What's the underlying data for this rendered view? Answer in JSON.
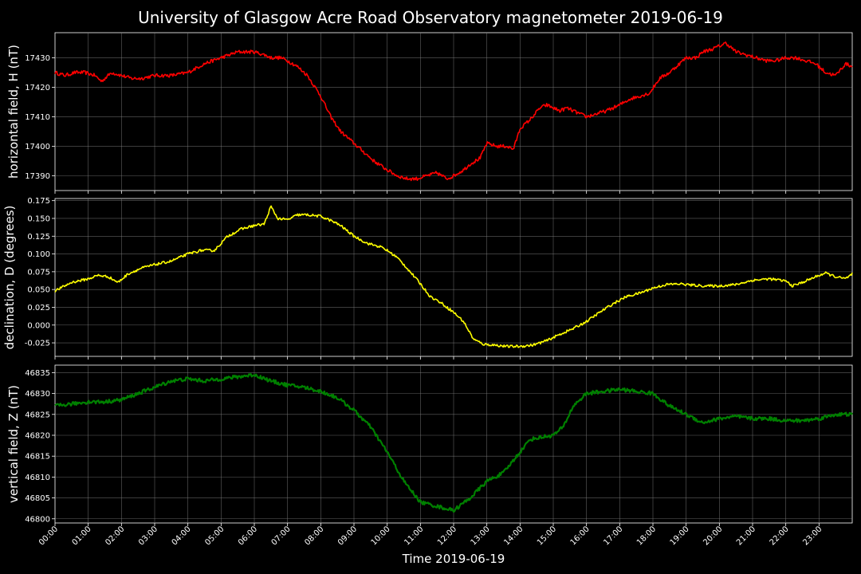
{
  "title": "University of Glasgow Acre Road Observatory magnetometer 2019-06-19",
  "xlabel": "Time 2019-06-19",
  "x_ticks": [
    "00:00",
    "01:00",
    "02:00",
    "03:00",
    "04:00",
    "05:00",
    "06:00",
    "07:00",
    "08:00",
    "09:00",
    "10:00",
    "11:00",
    "12:00",
    "13:00",
    "14:00",
    "15:00",
    "16:00",
    "17:00",
    "18:00",
    "19:00",
    "20:00",
    "21:00",
    "22:00",
    "23:00"
  ],
  "chart_data": [
    {
      "type": "line",
      "ylabel": "horizontal field, H (nT)",
      "color": "#ff0000",
      "xlim": [
        0,
        24
      ],
      "ylim": [
        17385,
        17438.5
      ],
      "yticks": [
        17390,
        17400,
        17410,
        17420,
        17430
      ],
      "series": [
        {
          "x": [
            0,
            0.3,
            0.6,
            0.9,
            1.2,
            1.4,
            1.7,
            2,
            2.3,
            2.6,
            3,
            3.5,
            4,
            4.5,
            5,
            5.5,
            6,
            6.3,
            6.5,
            6.8,
            7,
            7.3,
            7.6,
            8,
            8.3,
            8.6,
            9,
            9.3,
            9.6,
            10,
            10.3,
            10.6,
            10.9,
            11.2,
            11.5,
            11.8,
            12,
            12.3,
            12.5,
            12.8,
            13,
            13.3,
            13.6,
            13.8,
            14,
            14.3,
            14.6,
            14.8,
            15,
            15.2,
            15.4,
            15.6,
            15.8,
            16,
            16.3,
            16.6,
            17,
            17.3,
            17.6,
            17.9,
            18.2,
            18.5,
            18.8,
            19,
            19.3,
            19.5,
            19.8,
            20,
            20.2,
            20.5,
            20.8,
            21.1,
            21.4,
            21.7,
            22,
            22.3,
            22.6,
            22.9,
            23.2,
            23.5,
            23.8,
            24
          ],
          "y": [
            17425,
            17424,
            17425,
            17425,
            17424,
            17422,
            17425,
            17424,
            17423,
            17423,
            17424,
            17424,
            17425,
            17428,
            17430,
            17432,
            17432,
            17431,
            17430,
            17430,
            17429,
            17427,
            17424,
            17417,
            17410,
            17405,
            17401,
            17398,
            17395,
            17392,
            17390,
            17389,
            17389,
            17390,
            17391,
            17389,
            17390,
            17392,
            17394,
            17396,
            17401,
            17400,
            17400,
            17399,
            17406,
            17409,
            17413,
            17414,
            17413,
            17412,
            17413,
            17412,
            17411,
            17410,
            17411,
            17412,
            17414,
            17416,
            17417,
            17418,
            17423,
            17425,
            17428,
            17430,
            17430,
            17432,
            17433,
            17434,
            17435,
            17432,
            17431,
            17430,
            17429,
            17429,
            17430,
            17430,
            17429,
            17428,
            17425,
            17424,
            17428,
            17427
          ]
        }
      ]
    },
    {
      "type": "line",
      "ylabel": "declination, D (degrees)",
      "color": "#ffff00",
      "xlim": [
        0,
        24
      ],
      "ylim": [
        -0.044,
        0.178
      ],
      "yticks": [
        -0.025,
        0.0,
        0.025,
        0.05,
        0.075,
        0.1,
        0.125,
        0.15,
        0.175
      ],
      "series": [
        {
          "x": [
            0,
            0.5,
            1,
            1.3,
            1.6,
            1.9,
            2.2,
            2.6,
            3,
            3.5,
            4,
            4.4,
            4.8,
            5.2,
            5.6,
            6,
            6.3,
            6.5,
            6.7,
            7,
            7.3,
            7.6,
            8,
            8.3,
            8.6,
            9,
            9.4,
            9.8,
            10,
            10.3,
            10.6,
            11,
            11.3,
            11.6,
            12,
            12.3,
            12.6,
            12.9,
            13.2,
            13.6,
            14,
            14.4,
            14.8,
            15.2,
            15.6,
            16,
            16.4,
            16.8,
            17.2,
            17.6,
            18,
            18.4,
            18.8,
            19.2,
            19.6,
            20,
            20.5,
            21,
            21.5,
            22,
            22.2,
            22.5,
            23,
            23.2,
            23.5,
            23.8,
            24
          ],
          "y": [
            0.048,
            0.06,
            0.065,
            0.07,
            0.068,
            0.06,
            0.072,
            0.08,
            0.085,
            0.09,
            0.1,
            0.105,
            0.105,
            0.125,
            0.135,
            0.14,
            0.142,
            0.167,
            0.15,
            0.148,
            0.155,
            0.155,
            0.153,
            0.147,
            0.14,
            0.125,
            0.115,
            0.11,
            0.105,
            0.095,
            0.08,
            0.058,
            0.04,
            0.032,
            0.018,
            0.005,
            -0.02,
            -0.027,
            -0.028,
            -0.03,
            -0.03,
            -0.028,
            -0.022,
            -0.013,
            -0.005,
            0.005,
            0.018,
            0.03,
            0.04,
            0.045,
            0.052,
            0.057,
            0.058,
            0.056,
            0.055,
            0.055,
            0.057,
            0.063,
            0.065,
            0.062,
            0.055,
            0.06,
            0.07,
            0.073,
            0.068,
            0.065,
            0.072
          ]
        }
      ]
    },
    {
      "type": "line",
      "ylabel": "vertical field, Z (nT)",
      "color": "#008000",
      "xlim": [
        0,
        24
      ],
      "ylim": [
        46799,
        46836.8
      ],
      "yticks": [
        46800,
        46805,
        46810,
        46815,
        46820,
        46825,
        46830,
        46835
      ],
      "series": [
        {
          "x": [
            0,
            0.5,
            1,
            1.5,
            2,
            2.5,
            3,
            3.5,
            4,
            4.5,
            5,
            5.5,
            6,
            6.5,
            7,
            7.5,
            8,
            8.5,
            9,
            9.5,
            10,
            10.5,
            11,
            11.5,
            12,
            12.5,
            13,
            13.5,
            14,
            14.3,
            14.6,
            15,
            15.3,
            15.6,
            16,
            16.5,
            17,
            17.5,
            18,
            18.5,
            19,
            19.5,
            20,
            20.5,
            21,
            21.5,
            22,
            22.5,
            23,
            23.5,
            24
          ],
          "y": [
            46827,
            46827.5,
            46828,
            46828,
            46828.5,
            46830,
            46831.5,
            46833,
            46833.5,
            46833,
            46833.5,
            46834,
            46834.5,
            46833,
            46832,
            46831.5,
            46830.5,
            46829,
            46826,
            46822,
            46816,
            46809,
            46804,
            46803,
            46802,
            46805,
            46809,
            46811,
            46816,
            46819,
            46819.5,
            46820,
            46822,
            46827,
            46830,
            46830.5,
            46831,
            46830.5,
            46830,
            46827,
            46825,
            46823,
            46824,
            46824.5,
            46824,
            46824,
            46823.5,
            46823.5,
            46824,
            46825,
            46825
          ]
        }
      ]
    }
  ]
}
